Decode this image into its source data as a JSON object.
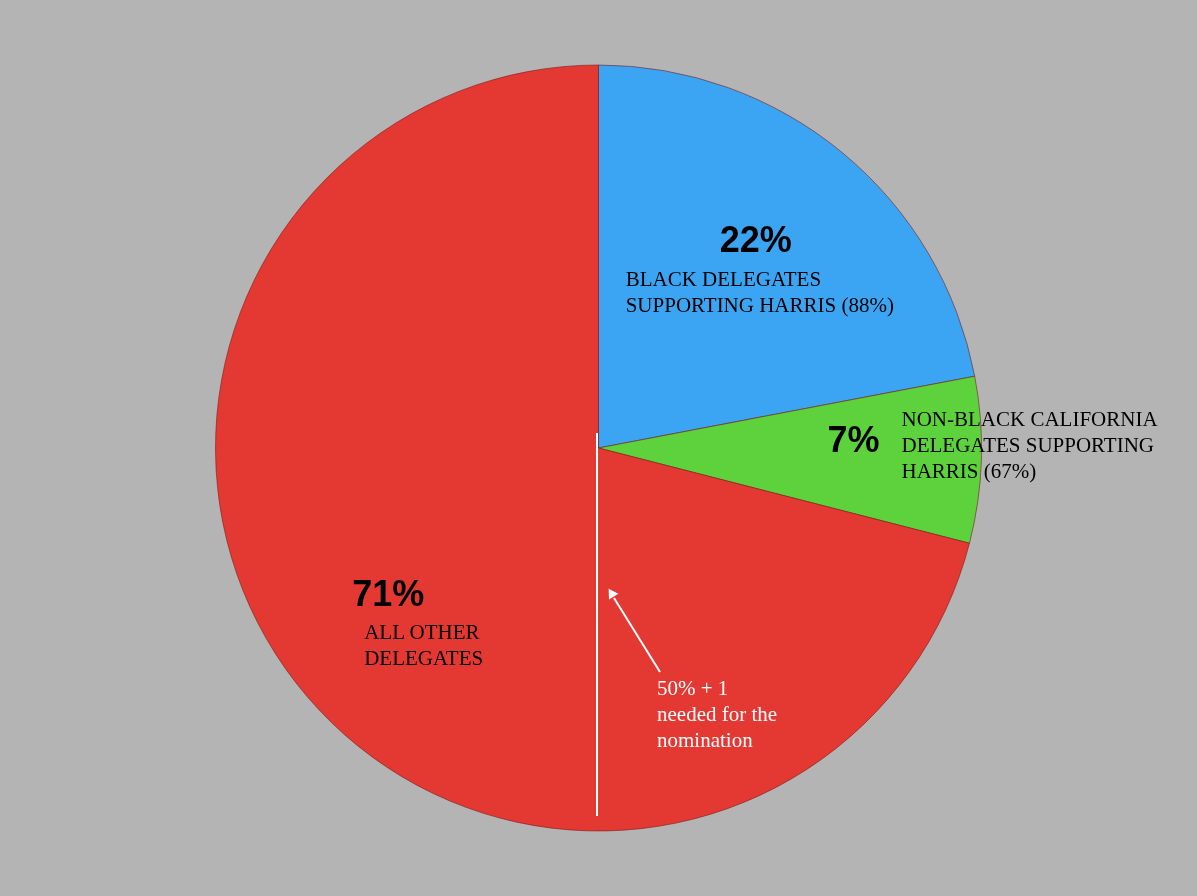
{
  "chart_data": {
    "type": "pie",
    "categories": [
      "BLACK DELEGATES\nSUPPORTING HARRIS (88%)",
      "NON-BLACK CALIFORNIA\nDELEGATES SUPPORTING\nHARRIS (67%)",
      "ALL OTHER\nDELEGATES"
    ],
    "values": [
      22,
      7,
      71
    ],
    "value_labels": [
      "22%",
      "7%",
      "71%"
    ],
    "colors": [
      "#3ba5f3",
      "#5ed23d",
      "#e43833"
    ],
    "needle": "ALL OTHER\nDELEGATES",
    "annotations": [
      "50% + 1\nneeded for the\nnomination"
    ]
  }
}
